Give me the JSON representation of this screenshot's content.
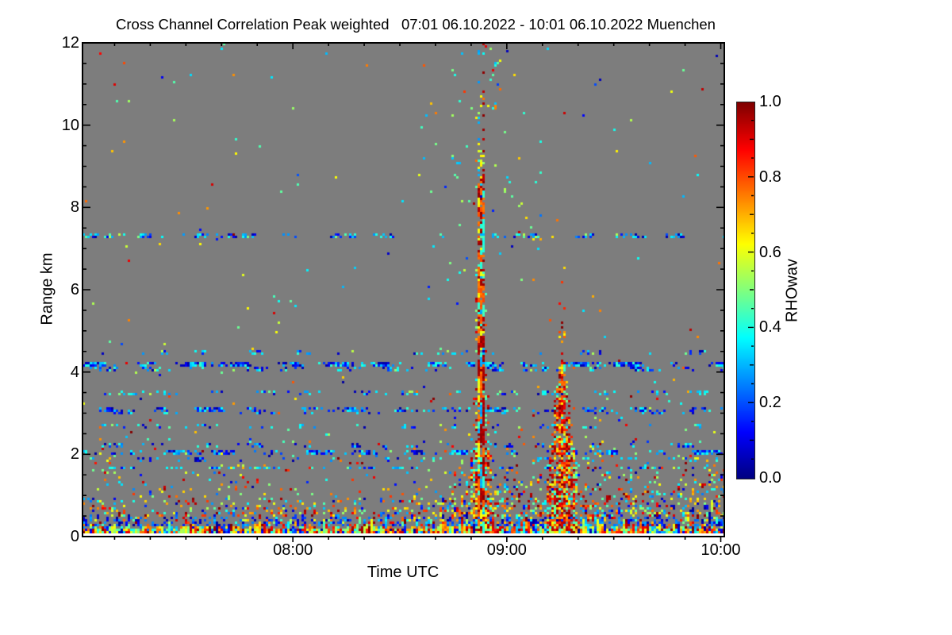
{
  "figure": {
    "title": "Cross Channel Correlation Peak weighted   07:01 06.10.2022 - 10:01 06.10.2022 Muenchen",
    "x_axis": {
      "label": "Time UTC",
      "tick_labels": [
        "08:00",
        "09:00",
        "10:00"
      ],
      "tick_minutes": [
        480,
        540,
        600
      ],
      "start_minute": 421,
      "end_minute": 601,
      "minor_step_min": 10
    },
    "y_axis": {
      "label": "Range km",
      "tick_labels": [
        "0",
        "2",
        "4",
        "6",
        "8",
        "10",
        "12"
      ],
      "tick_values": [
        0,
        2,
        4,
        6,
        8,
        10,
        12
      ],
      "min": 0,
      "max": 12,
      "minor_step_km": 0.5
    },
    "colorbar": {
      "label": "RHOwav",
      "tick_labels": [
        "0.0",
        "0.2",
        "0.4",
        "0.6",
        "0.8",
        "1.0"
      ],
      "tick_values": [
        0,
        0.2,
        0.4,
        0.6,
        0.8,
        1
      ],
      "min": 0,
      "max": 1,
      "colormap": "jet"
    }
  },
  "colors": {
    "no_data_gray": "#7d7d7d",
    "frame": "#000000",
    "page_bg": "#ffffff"
  },
  "chart_data": {
    "type": "heatmap",
    "title": "Cross Channel Correlation Peak weighted   07:01 06.10.2022 - 10:01 06.10.2022 Muenchen",
    "site": "Muenchen",
    "time_span": "07:01 06.10.2022 - 10:01 06.10.2022",
    "xlabel": "Time UTC",
    "ylabel": "Range km",
    "x_start": "07:01",
    "x_end": "10:01",
    "x_ticks": [
      "08:00",
      "09:00",
      "10:00"
    ],
    "ylim": [
      0,
      12
    ],
    "y_ticks": [
      0,
      2,
      4,
      6,
      8,
      10,
      12
    ],
    "value_label": "RHOwav",
    "value_lim": [
      0,
      1
    ],
    "colormap": "jet",
    "no_data": "uniform gray background where correlation not detected",
    "render_seed": 7,
    "features": {
      "ground_noise": {
        "description": "dense multicolour speckle in lowest ~1 km, density decays with height, warm-biased values",
        "surface_density": 0.95,
        "decay_km_clear": 0.33,
        "decay_km_rain": 0.5,
        "decay_km_near_plume": 0.58,
        "rain_onset_x_frac": 0.555,
        "blue_band_km": [
          0.15,
          0.38
        ],
        "sparse_tail_density": 0.05
      },
      "rain_plumes": [
        {
          "time_utc": "08:52",
          "x_frac": 0.62,
          "core_top_km": 8.6,
          "speckle_top_km": 12.0,
          "description": "narrow vertical high-correlation column, dark-red core blocks with cyan/yellow fringe"
        },
        {
          "time_utc": "09:14",
          "x_frac": 0.744,
          "apex_km": 4.75,
          "spray_top_km": 6.4,
          "description": "cone-shaped shaft widening toward ground, red/orange/yellow with cyan edge"
        }
      ],
      "stripe_artifacts": [
        {
          "range_km": 7.3,
          "density": 0.3,
          "low_bias": 0.3
        },
        {
          "range_km": 4.45,
          "density": 0.12,
          "low_bias": 0.35
        },
        {
          "range_km": 4.12,
          "density": 0.5,
          "low_bias": 0.5
        },
        {
          "range_km": 4.02,
          "density": 0.2,
          "low_bias": 0.45
        },
        {
          "range_km": 3.45,
          "density": 0.18,
          "low_bias": 0.25
        },
        {
          "range_km": 3.05,
          "density": 0.3,
          "low_bias": 0.55
        },
        {
          "range_km": 2.95,
          "density": 0.15,
          "low_bias": 0.5
        },
        {
          "range_km": 2.6,
          "density": 0.1,
          "low_bias": 0.3
        },
        {
          "range_km": 2.15,
          "density": 0.15,
          "low_bias": 0.55
        },
        {
          "range_km": 2.0,
          "density": 0.4,
          "low_bias": 0.55
        },
        {
          "range_km": 1.8,
          "density": 0.15,
          "low_bias": 0.4
        },
        {
          "range_km": 1.6,
          "density": 0.3,
          "low_bias": 0.35
        }
      ],
      "sparse_speckle": {
        "base_density": 0.0025,
        "plume_halo_density": 0.012,
        "tight_halo_density": 0.015,
        "description": "isolated cyan/green/blue dots everywhere, concentrated above and around the 08:52 plume"
      }
    }
  }
}
